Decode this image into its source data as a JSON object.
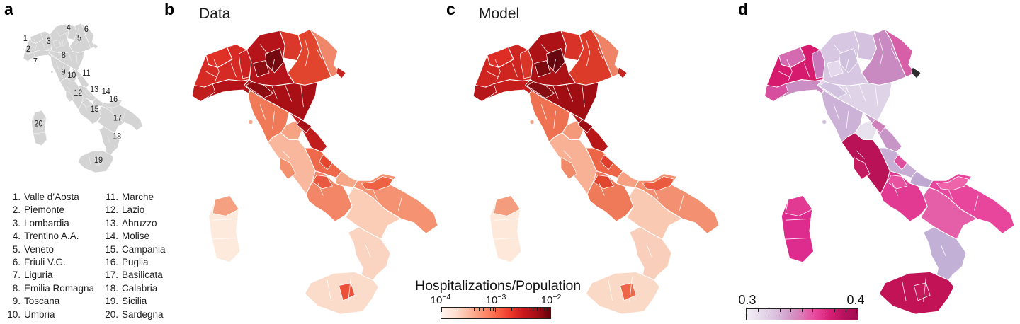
{
  "panels": {
    "a": {
      "label": "a",
      "fills": {
        "valle_daosta": "#d4d4d4",
        "piemonte": "#d4d4d4",
        "p_novara": "#d4d4d4",
        "liguria": "#d4d4d4",
        "p_imperia": "#d4d4d4",
        "lombardia": "#d4d4d4",
        "p_milano": "#d4d4d4",
        "p_bergamo": "#d4d4d4",
        "trentino": "#d4d4d4",
        "veneto": "#d4d4d4",
        "friuli": "#d4d4d4",
        "trieste": "#d4d4d4",
        "emilia": "#d4d4d4",
        "p_emilia_west": "#d4d4d4",
        "toscana": "#d4d4d4",
        "elba": "#d4d4d4",
        "umbria": "#d4d4d4",
        "marche": "#d4d4d4",
        "p_pesaro": "#d4d4d4",
        "lazio": "#d4d4d4",
        "p_rome": "#d4d4d4",
        "abruzzo": "#d4d4d4",
        "p_abruzzo_e": "#d4d4d4",
        "molise": "#d4d4d4",
        "campania": "#d4d4d4",
        "p_caserta": "#d4d4d4",
        "puglia": "#d4d4d4",
        "p_foggia": "#d4d4d4",
        "basilicata": "#d4d4d4",
        "calabria": "#d4d4d4",
        "sicilia": "#d4d4d4",
        "p_enna": "#d4d4d4",
        "sardegna": "#d4d4d4",
        "p_sassari": "#d4d4d4"
      }
    },
    "b": {
      "label": "b",
      "title": "Data",
      "fills": {
        "valle_daosta": "#e03127",
        "piemonte": "#d62b24",
        "p_novara": "#cb2120",
        "liguria": "#b2141a",
        "p_imperia": "#c01d1d",
        "lombardia": "#b5151a",
        "p_milano": "#8f0e13",
        "p_bergamo": "#740a10",
        "trentino": "#db382c",
        "veneto": "#e2452e",
        "friuli": "#f0876a",
        "trieste": "#c3241f",
        "emilia": "#a81015",
        "p_emilia_west": "#8c0c12",
        "toscana": "#f07a58",
        "elba": "#f5a88b",
        "umbria": "#f6a283",
        "marche": "#c21d1d",
        "p_pesaro": "#a50f15",
        "lazio": "#f9b89d",
        "p_rome": "#f2906e",
        "abruzzo": "#ee6a4a",
        "p_abruzzo_e": "#e4452f",
        "molise": "#f6a787",
        "campania": "#f28667",
        "p_caserta": "#e95941",
        "puglia": "#f49272",
        "p_foggia": "#ec6242",
        "basilicata": "#fbcdb7",
        "calabria": "#fad3c1",
        "sicilia": "#fbdccb",
        "p_enna": "#eb5038",
        "sardegna": "#fdeadd",
        "p_sassari": "#f5a081"
      }
    },
    "c": {
      "label": "c",
      "title": "Model",
      "fills": {
        "valle_daosta": "#dd2d25",
        "piemonte": "#cf2521",
        "p_novara": "#da3529",
        "liguria": "#c41d1c",
        "p_imperia": "#b5161a",
        "lombardia": "#ad1217",
        "p_milano": "#7c0b10",
        "p_bergamo": "#670810",
        "trentino": "#d93228",
        "veneto": "#dd3b2a",
        "friuli": "#ef8365",
        "trieste": "#c3241f",
        "emilia": "#a00e14",
        "p_emilia_west": "#850c11",
        "toscana": "#ee7251",
        "elba": "#f5a88b",
        "umbria": "#f49a7a",
        "marche": "#b81619",
        "p_pesaro": "#9c0e14",
        "lazio": "#f8b195",
        "p_rome": "#f08a68",
        "abruzzo": "#ec6546",
        "p_abruzzo_e": "#e03e2c",
        "molise": "#f5a182",
        "campania": "#ef7a5a",
        "p_caserta": "#e2452f",
        "puglia": "#f39071",
        "p_foggia": "#e95a3f",
        "basilicata": "#fac9b2",
        "calabria": "#f9cfbc",
        "sicilia": "#fbd9c7",
        "p_enna": "#ed6647",
        "sardegna": "#fde8da",
        "p_sassari": "#f49d7e"
      }
    },
    "d": {
      "label": "d",
      "fills": {
        "valle_daosta": "#d46ab0",
        "piemonte": "#d61a6e",
        "p_novara": "#c878ba",
        "liguria": "#ca8ec4",
        "p_imperia": "#d84e9e",
        "lombardia": "#d7c7e2",
        "p_milano": "#e4d9ec",
        "p_bergamo": "#cfc0de",
        "trentino": "#d4c0df",
        "veneto": "#c98ac2",
        "friuli": "#d75fa8",
        "trieste": "#2e2e2e",
        "emilia": "#ded3e7",
        "p_emilia_west": "#d2c4e0",
        "toscana": "#cdb2d8",
        "elba": "#d4c2de",
        "umbria": "#e8e1ee",
        "marche": "#c795c6",
        "p_pesaro": "#cf7fba",
        "lazio": "#b91256",
        "p_rome": "#c41a60",
        "abruzzo": "#c8add4",
        "p_abruzzo_e": "#de4f9e",
        "molise": "#bea8d1",
        "campania": "#e23a92",
        "p_caserta": "#e8519f",
        "puglia": "#e8459c",
        "p_foggia": "#ee64ab",
        "basilicata": "#e55fa8",
        "calabria": "#c3b0d7",
        "sicilia": "#c11355",
        "p_enna": "#c5195c",
        "sardegna": "#de2c8e",
        "p_sassari": "#e23a92"
      }
    }
  },
  "region_index": [
    {
      "num": "1",
      "name": "Valle d’Aosta"
    },
    {
      "num": "2",
      "name": "Piemonte"
    },
    {
      "num": "3",
      "name": "Lombardia"
    },
    {
      "num": "4",
      "name": "Trentino A.A."
    },
    {
      "num": "5",
      "name": "Veneto"
    },
    {
      "num": "6",
      "name": "Friuli V.G."
    },
    {
      "num": "7",
      "name": "Liguria"
    },
    {
      "num": "8",
      "name": "Emilia Romagna"
    },
    {
      "num": "9",
      "name": "Toscana"
    },
    {
      "num": "10",
      "name": "Umbria"
    },
    {
      "num": "11",
      "name": "Marche"
    },
    {
      "num": "12",
      "name": "Lazio"
    },
    {
      "num": "13",
      "name": "Abruzzo"
    },
    {
      "num": "14",
      "name": "Molise"
    },
    {
      "num": "15",
      "name": "Campania"
    },
    {
      "num": "16",
      "name": "Puglia"
    },
    {
      "num": "17",
      "name": "Basilicata"
    },
    {
      "num": "18",
      "name": "Calabria"
    },
    {
      "num": "19",
      "name": "Sicilia"
    },
    {
      "num": "20",
      "name": "Sardegna"
    }
  ],
  "colorbar_red": {
    "title": "Hospitalizations/Population",
    "ticks": [
      {
        "base": "10",
        "exp": "−4"
      },
      {
        "base": "10",
        "exp": "−3"
      },
      {
        "base": "10",
        "exp": "−2"
      }
    ],
    "gradient": [
      "#fff5f0",
      "#fee0d2",
      "#fcbba1",
      "#fc9272",
      "#fb6a4a",
      "#ef3b2c",
      "#cb181d",
      "#a50f15",
      "#67000d"
    ]
  },
  "colorbar_pink": {
    "min_label": "0.3",
    "max_label": "0.4",
    "gradient": [
      "#f3eff6",
      "#e7dbeb",
      "#dcc3e0",
      "#d0a0cc",
      "#dd77b5",
      "#e9469d",
      "#d61e76",
      "#b8125e",
      "#a00d52"
    ]
  },
  "chart_data": {
    "type": "choropleth",
    "maps": [
      {
        "panel": "a",
        "title": "",
        "content": "Reference map of Italy, 20 numbered regions, gray fill"
      },
      {
        "panel": "b",
        "title": "Data",
        "variable": "Hospitalizations/Population",
        "scale": "log",
        "domain_labels": [
          "10^-4",
          "10^-2"
        ],
        "colormap": "white to dark red",
        "pattern": "highest values in northern Italy (Lombardia, Emilia Romagna), lowest in southern regions and islands"
      },
      {
        "panel": "c",
        "title": "Model",
        "variable": "Hospitalizations/Population",
        "scale": "log",
        "domain_labels": [
          "10^-4",
          "10^-2"
        ],
        "colormap": "white to dark red",
        "pattern": "model reproduction of panel b gradient north-high / south-low"
      },
      {
        "panel": "d",
        "title": "",
        "scale": "linear",
        "domain_labels": [
          "0.3",
          "0.4"
        ],
        "colormap": "light lavender to dark magenta",
        "pattern": "high values in Piemonte, Lazio, Campania, Sicilia, Sardegna; low in Lombardia, central/Calabria"
      }
    ]
  }
}
